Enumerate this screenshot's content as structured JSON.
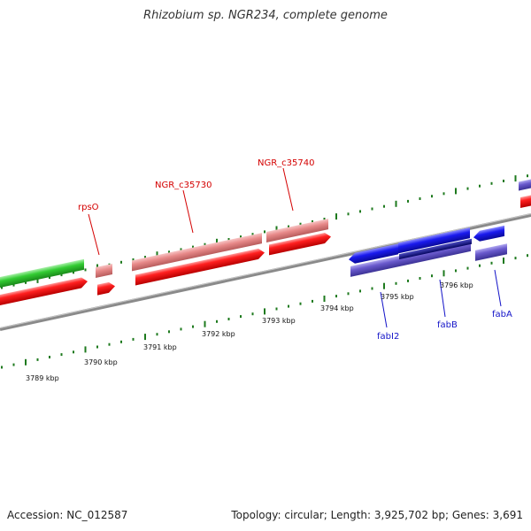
{
  "title": "Rhizobium sp. NGR234, complete genome",
  "footer": {
    "accession": "Accession: NC_012587",
    "summary": "Topology: circular; Length: 3,925,702 bp; Genes: 3,691"
  },
  "ruler": {
    "labels": [
      "3789 kbp",
      "3790 kbp",
      "3791 kbp",
      "3792 kbp",
      "3793 kbp",
      "3794 kbp",
      "3795 kbp",
      "3796 kbp"
    ]
  },
  "gene_labels": [
    {
      "name": "rpsO",
      "color": "#d40000"
    },
    {
      "name": "NGR_c35730",
      "color": "#d40000"
    },
    {
      "name": "NGR_c35740",
      "color": "#d40000"
    },
    {
      "name": "fabI2",
      "color": "#1414c8"
    },
    {
      "name": "fabB",
      "color": "#1414c8"
    },
    {
      "name": "fabA",
      "color": "#1414c8"
    }
  ],
  "colors": {
    "backbone": "#8a8a8a",
    "tick": "#1e7a1e",
    "gene_red": "#ff1a1a",
    "gene_pink": "#e88a8a",
    "gene_green": "#33cc33",
    "gene_blue": "#1a1aee",
    "gene_violet": "#6a5acd",
    "gene_navy": "#0a0a80"
  }
}
